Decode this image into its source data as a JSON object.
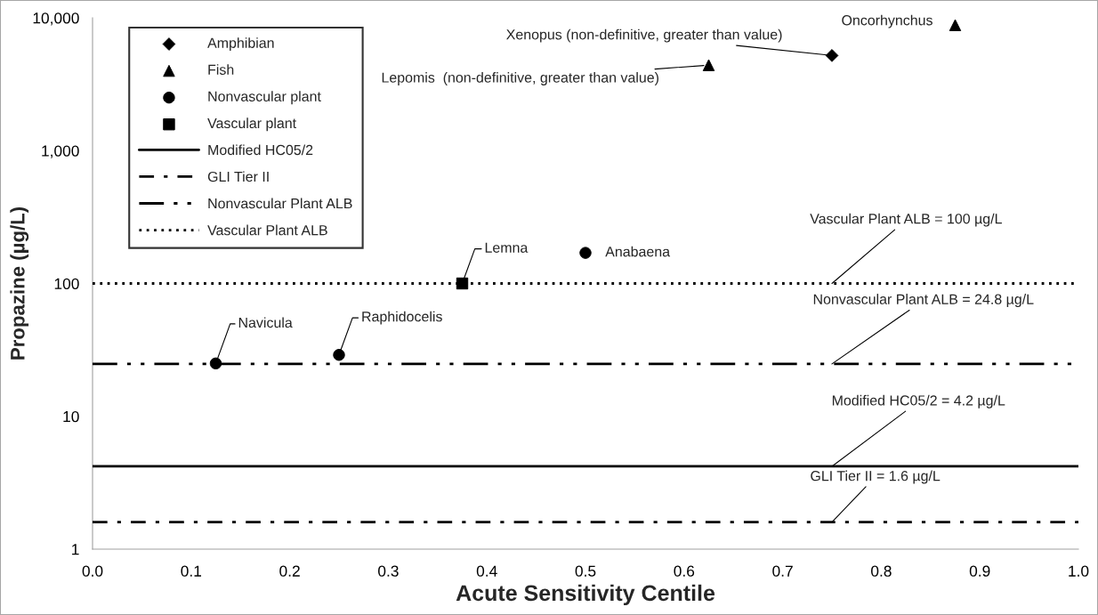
{
  "chart_data": {
    "type": "scatter",
    "xlabel": "Acute Sensitivity Centile",
    "ylabel": "Propazine (µg/L)",
    "log": "y",
    "grid": false,
    "legend": "top left",
    "xlim": [
      0,
      1
    ],
    "xticks": [
      {
        "value": 0,
        "label": "0.0"
      },
      {
        "value": 0.1,
        "label": "0.1"
      },
      {
        "value": 0.2,
        "label": "0.2"
      },
      {
        "value": 0.3,
        "label": "0.3"
      },
      {
        "value": 0.4,
        "label": "0.4"
      },
      {
        "value": 0.5,
        "label": "0.5"
      },
      {
        "value": 0.6,
        "label": "0.6"
      },
      {
        "value": 0.7,
        "label": "0.7"
      },
      {
        "value": 0.8,
        "label": "0.8"
      },
      {
        "value": 0.9,
        "label": "0.9"
      },
      {
        "value": 1,
        "label": "1.0"
      }
    ],
    "ylim": [
      1,
      10000
    ],
    "yticks": [
      1,
      10,
      100,
      {
        "value": 1000,
        "label": "1,000"
      },
      {
        "value": 10000,
        "label": "10,000"
      }
    ],
    "series": [
      {
        "name": "Amphibian",
        "marker": "diamond",
        "color": "#000000",
        "x": [
          0.75
        ],
        "values": [
          5200
        ]
      },
      {
        "name": "Fish",
        "marker": "triangle",
        "color": "#000000",
        "x": [
          0.625,
          0.875
        ],
        "values": [
          4400,
          8800
        ]
      },
      {
        "name": "Nonvascular plant",
        "marker": "circle",
        "color": "#000000",
        "x": [
          0.125,
          0.25,
          0.5
        ],
        "values": [
          25,
          29,
          170
        ]
      },
      {
        "name": "Vascular plant",
        "marker": "square",
        "color": "#000000",
        "x": [
          0.375
        ],
        "values": [
          100
        ]
      },
      {
        "name": "Modified HC05/2",
        "type": "line",
        "line_style": "solid",
        "color": "#000000",
        "x": [
          0,
          1
        ],
        "values": [
          4.2,
          4.2
        ]
      },
      {
        "name": "GLI Tier II",
        "type": "line",
        "line_style": "dashdot",
        "color": "#000000",
        "x": [
          0,
          1
        ],
        "values": [
          1.6,
          1.6
        ]
      },
      {
        "name": "Nonvascular Plant ALB",
        "type": "line",
        "line_style": "dashdotdot",
        "color": "#000000",
        "x": [
          0,
          1
        ],
        "values": [
          24.8,
          24.8
        ]
      },
      {
        "name": "Vascular Plant ALB",
        "type": "line",
        "line_style": "dotted",
        "color": "#000000",
        "x": [
          0,
          1
        ],
        "values": [
          100,
          100
        ]
      }
    ],
    "annotations": [
      {
        "text": "Navicula",
        "x": 0.125,
        "y": 25
      },
      {
        "text": "Raphidocelis",
        "x": 0.25,
        "y": 29
      },
      {
        "text": "Lemna",
        "x": 0.375,
        "y": 100
      },
      {
        "text": "Anabaena",
        "x": 0.5,
        "y": 170
      },
      {
        "text": "Lepomis  (non-definitive, greater than value)",
        "x": 0.625,
        "y": 4400
      },
      {
        "text": "Xenopus (non-definitive, greater than value)",
        "x": 0.75,
        "y": 5200
      },
      {
        "text": "Oncorhynchus",
        "x": 0.875,
        "y": 8800
      },
      {
        "text": "Vascular Plant ALB = 100 µg/L",
        "x": 0.75,
        "y": 100
      },
      {
        "text": "Nonvascular Plant ALB = 24.8 µg/L",
        "x": 0.75,
        "y": 24.8
      },
      {
        "text": "Modified HC05/2 = 4.2 µg/L",
        "x": 0.75,
        "y": 4.2
      },
      {
        "text": "GLI Tier II = 1.6 µg/L",
        "x": 0.75,
        "y": 1.6
      }
    ]
  }
}
